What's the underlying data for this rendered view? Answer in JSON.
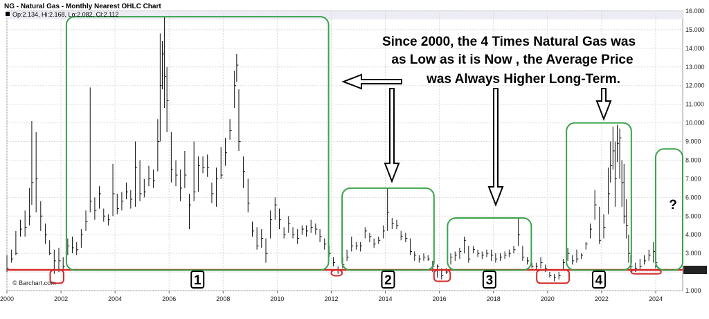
{
  "header": {
    "title": "NG - Natural Gas - Monthly Nearest OHLC Chart",
    "ohlc": "Op:2.134, Hi:2.168, Lo:2.082, Cl:2.112"
  },
  "credit": "© Barchart.com",
  "annotation": {
    "lines": [
      "Since 2000, the 4 Times Natural Gas was",
      "as Low as it is Now , the Average Price",
      "was Always Higher Long-Term."
    ]
  },
  "question_mark": "?",
  "current_price_label": "2.112",
  "periods": [
    {
      "label": "1",
      "x_start": 2002.2,
      "x_end": 2011.9,
      "y_low": 2.1,
      "y_high": 15.7
    },
    {
      "label": "2",
      "x_start": 2012.4,
      "x_end": 2015.8,
      "y_low": 2.1,
      "y_high": 6.5
    },
    {
      "label": "3",
      "x_start": 2016.3,
      "x_end": 2019.4,
      "y_low": 2.1,
      "y_high": 4.9
    },
    {
      "label": "4",
      "x_start": 2020.7,
      "x_end": 2023.1,
      "y_low": 2.1,
      "y_high": 10.0
    }
  ],
  "lows": [
    {
      "x_start": 2001.6,
      "x_end": 2002.1,
      "y_low": 1.4,
      "y_high": 2.1
    },
    {
      "x_start": 2012.0,
      "x_end": 2012.4,
      "y_low": 1.8,
      "y_high": 2.1
    },
    {
      "x_start": 2015.8,
      "x_end": 2016.4,
      "y_low": 1.5,
      "y_high": 2.1
    },
    {
      "x_start": 2019.6,
      "x_end": 2020.8,
      "y_low": 1.4,
      "y_high": 2.1
    },
    {
      "x_start": 2023.1,
      "x_end": 2024.2,
      "y_low": 1.9,
      "y_high": 2.1
    }
  ],
  "future_box": {
    "x_start": 2024.0,
    "x_end": 2025.0,
    "y_low": 2.1,
    "y_high": 8.6
  },
  "chart_data": {
    "type": "ohlc",
    "title": "NG - Natural Gas - Monthly Nearest OHLC Chart",
    "xlabel": "",
    "ylabel": "",
    "xlim": [
      2000,
      2025
    ],
    "ylim": [
      1.0,
      16.0
    ],
    "y_ticks": [
      "1.000",
      "2.000",
      "3.000",
      "4.000",
      "5.000",
      "6.000",
      "7.000",
      "8.000",
      "9.000",
      "10.000",
      "11.000",
      "12.000",
      "13.000",
      "14.000",
      "15.000",
      "16.000"
    ],
    "x_ticks": [
      "2000",
      "2002",
      "2004",
      "2006",
      "2008",
      "2010",
      "2012",
      "2014",
      "2016",
      "2018",
      "2020",
      "2022",
      "2024"
    ],
    "reference_line": 2.112,
    "grid": true,
    "bars": [
      [
        2000.0,
        2.2,
        2.0,
        2.9
      ],
      [
        2000.17,
        2.7,
        2.5,
        3.2
      ],
      [
        2000.33,
        3.0,
        2.9,
        4.2
      ],
      [
        2000.5,
        4.3,
        3.9,
        4.8
      ],
      [
        2000.67,
        4.4,
        3.9,
        5.3
      ],
      [
        2000.83,
        5.0,
        4.5,
        6.5
      ],
      [
        2000.92,
        6.8,
        5.6,
        10.1
      ],
      [
        2001.08,
        7.0,
        5.2,
        9.5
      ],
      [
        2001.25,
        5.0,
        4.2,
        5.8
      ],
      [
        2001.42,
        4.0,
        3.5,
        4.6
      ],
      [
        2001.58,
        3.0,
        2.9,
        3.7
      ],
      [
        2001.75,
        2.6,
        1.9,
        3.2
      ],
      [
        2001.92,
        2.6,
        2.0,
        3.3
      ],
      [
        2002.08,
        2.3,
        2.1,
        2.8
      ],
      [
        2002.25,
        3.4,
        2.9,
        3.8
      ],
      [
        2002.42,
        3.3,
        3.0,
        3.9
      ],
      [
        2002.58,
        3.2,
        2.9,
        3.6
      ],
      [
        2002.75,
        4.0,
        3.3,
        4.3
      ],
      [
        2002.92,
        4.7,
        4.2,
        5.3
      ],
      [
        2003.08,
        5.8,
        5.2,
        11.9
      ],
      [
        2003.25,
        5.3,
        4.8,
        6.0
      ],
      [
        2003.42,
        6.2,
        5.4,
        6.6
      ],
      [
        2003.58,
        5.0,
        4.7,
        5.4
      ],
      [
        2003.75,
        4.8,
        4.5,
        5.1
      ],
      [
        2003.92,
        6.2,
        5.0,
        7.8
      ],
      [
        2004.08,
        5.4,
        5.1,
        6.2
      ],
      [
        2004.25,
        5.8,
        5.3,
        6.3
      ],
      [
        2004.42,
        6.3,
        5.9,
        6.8
      ],
      [
        2004.58,
        5.9,
        5.4,
        6.4
      ],
      [
        2004.75,
        7.6,
        5.5,
        9.0
      ],
      [
        2004.92,
        6.2,
        5.8,
        8.0
      ],
      [
        2005.08,
        6.3,
        6.0,
        7.0
      ],
      [
        2005.25,
        7.0,
        6.6,
        7.7
      ],
      [
        2005.42,
        6.9,
        6.5,
        7.5
      ],
      [
        2005.58,
        9.0,
        7.4,
        10.2
      ],
      [
        2005.67,
        12.0,
        9.0,
        14.8
      ],
      [
        2005.75,
        13.7,
        11.8,
        14.4
      ],
      [
        2005.83,
        12.5,
        10.8,
        15.7
      ],
      [
        2005.92,
        11.2,
        9.5,
        13.0
      ],
      [
        2006.08,
        7.5,
        6.8,
        9.5
      ],
      [
        2006.25,
        7.2,
        6.6,
        8.0
      ],
      [
        2006.42,
        6.5,
        5.8,
        7.5
      ],
      [
        2006.58,
        7.2,
        6.5,
        8.5
      ],
      [
        2006.75,
        5.6,
        4.3,
        6.2
      ],
      [
        2006.92,
        6.3,
        5.8,
        9.0
      ],
      [
        2007.08,
        7.7,
        6.3,
        8.2
      ],
      [
        2007.25,
        7.6,
        7.3,
        8.2
      ],
      [
        2007.42,
        7.6,
        7.1,
        8.3
      ],
      [
        2007.58,
        6.2,
        5.7,
        6.8
      ],
      [
        2007.75,
        7.0,
        5.5,
        7.6
      ],
      [
        2007.92,
        7.2,
        7.0,
        8.7
      ],
      [
        2008.08,
        8.4,
        7.7,
        9.2
      ],
      [
        2008.25,
        9.6,
        9.1,
        10.2
      ],
      [
        2008.42,
        12.0,
        10.8,
        12.8
      ],
      [
        2008.5,
        13.1,
        12.2,
        13.7
      ],
      [
        2008.58,
        9.0,
        8.5,
        11.8
      ],
      [
        2008.75,
        7.4,
        6.5,
        8.2
      ],
      [
        2008.92,
        5.7,
        5.2,
        7.0
      ],
      [
        2009.08,
        4.2,
        3.9,
        4.7
      ],
      [
        2009.25,
        3.4,
        3.2,
        4.4
      ],
      [
        2009.42,
        3.8,
        3.3,
        4.3
      ],
      [
        2009.58,
        3.0,
        2.5,
        3.8
      ],
      [
        2009.75,
        4.8,
        3.8,
        5.3
      ],
      [
        2009.92,
        5.6,
        4.8,
        6.0
      ],
      [
        2010.08,
        4.8,
        4.3,
        5.4
      ],
      [
        2010.25,
        4.0,
        3.8,
        4.4
      ],
      [
        2010.42,
        4.6,
        4.1,
        5.0
      ],
      [
        2010.58,
        4.0,
        3.8,
        4.4
      ],
      [
        2010.75,
        3.8,
        3.5,
        4.3
      ],
      [
        2010.92,
        4.3,
        4.0,
        4.5
      ],
      [
        2011.08,
        4.2,
        3.9,
        4.5
      ],
      [
        2011.25,
        4.4,
        4.1,
        4.8
      ],
      [
        2011.42,
        4.3,
        4.0,
        4.6
      ],
      [
        2011.58,
        3.9,
        3.6,
        4.3
      ],
      [
        2011.75,
        3.5,
        3.2,
        3.8
      ],
      [
        2011.92,
        3.0,
        2.8,
        3.4
      ],
      [
        2012.08,
        2.5,
        2.3,
        2.8
      ],
      [
        2012.25,
        2.1,
        1.9,
        2.3
      ],
      [
        2012.42,
        2.4,
        2.2,
        2.8
      ],
      [
        2012.58,
        2.8,
        2.6,
        3.2
      ],
      [
        2012.75,
        3.4,
        3.1,
        3.9
      ],
      [
        2012.92,
        3.4,
        3.2,
        3.6
      ],
      [
        2013.08,
        3.4,
        3.1,
        3.6
      ],
      [
        2013.25,
        4.2,
        3.8,
        4.4
      ],
      [
        2013.42,
        3.9,
        3.6,
        4.1
      ],
      [
        2013.58,
        3.5,
        3.3,
        3.8
      ],
      [
        2013.75,
        3.7,
        3.5,
        3.9
      ],
      [
        2013.92,
        4.2,
        3.8,
        4.5
      ],
      [
        2014.08,
        5.2,
        4.2,
        6.5
      ],
      [
        2014.25,
        4.6,
        4.3,
        4.9
      ],
      [
        2014.42,
        4.5,
        4.3,
        4.8
      ],
      [
        2014.58,
        3.9,
        3.7,
        4.2
      ],
      [
        2014.75,
        3.8,
        3.6,
        4.1
      ],
      [
        2014.92,
        3.1,
        2.9,
        3.8
      ],
      [
        2015.08,
        2.9,
        2.6,
        3.1
      ],
      [
        2015.25,
        2.7,
        2.5,
        2.9
      ],
      [
        2015.42,
        2.8,
        2.6,
        3.0
      ],
      [
        2015.58,
        2.7,
        2.6,
        2.9
      ],
      [
        2015.75,
        2.3,
        2.0,
        2.6
      ],
      [
        2015.92,
        2.3,
        1.7,
        2.4
      ],
      [
        2016.08,
        1.8,
        1.6,
        2.2
      ],
      [
        2016.25,
        2.0,
        1.9,
        2.2
      ],
      [
        2016.42,
        2.8,
        2.4,
        3.0
      ],
      [
        2016.58,
        2.9,
        2.6,
        3.1
      ],
      [
        2016.75,
        3.1,
        2.7,
        3.3
      ],
      [
        2016.92,
        3.7,
        3.0,
        3.9
      ],
      [
        2017.08,
        2.7,
        2.5,
        3.4
      ],
      [
        2017.25,
        3.2,
        3.0,
        3.4
      ],
      [
        2017.42,
        3.0,
        2.8,
        3.2
      ],
      [
        2017.58,
        2.9,
        2.7,
        3.1
      ],
      [
        2017.75,
        3.0,
        2.8,
        3.2
      ],
      [
        2017.92,
        2.9,
        2.6,
        3.2
      ],
      [
        2018.08,
        2.7,
        2.5,
        3.0
      ],
      [
        2018.25,
        2.8,
        2.6,
        3.0
      ],
      [
        2018.42,
        2.9,
        2.7,
        3.1
      ],
      [
        2018.58,
        3.0,
        2.8,
        3.2
      ],
      [
        2018.75,
        3.2,
        3.0,
        3.4
      ],
      [
        2018.92,
        4.0,
        3.4,
        4.9
      ],
      [
        2019.08,
        2.8,
        2.6,
        3.4
      ],
      [
        2019.25,
        2.6,
        2.4,
        2.8
      ],
      [
        2019.42,
        2.3,
        2.2,
        2.5
      ],
      [
        2019.58,
        2.3,
        2.1,
        2.5
      ],
      [
        2019.75,
        2.5,
        2.2,
        2.8
      ],
      [
        2019.92,
        2.2,
        2.0,
        2.4
      ],
      [
        2020.08,
        1.8,
        1.7,
        2.0
      ],
      [
        2020.25,
        1.7,
        1.5,
        1.9
      ],
      [
        2020.42,
        1.8,
        1.6,
        2.0
      ],
      [
        2020.58,
        2.5,
        2.1,
        2.7
      ],
      [
        2020.75,
        3.0,
        2.6,
        3.3
      ],
      [
        2020.92,
        2.6,
        2.4,
        2.9
      ],
      [
        2021.08,
        2.7,
        2.5,
        3.2
      ],
      [
        2021.25,
        2.9,
        2.7,
        3.0
      ],
      [
        2021.42,
        3.5,
        3.2,
        3.6
      ],
      [
        2021.58,
        4.3,
        3.8,
        4.6
      ],
      [
        2021.75,
        5.6,
        4.8,
        6.4
      ],
      [
        2021.92,
        3.7,
        3.5,
        5.5
      ],
      [
        2022.08,
        4.4,
        3.8,
        5.1
      ],
      [
        2022.25,
        6.2,
        5.1,
        7.6
      ],
      [
        2022.33,
        7.7,
        6.8,
        9.0
      ],
      [
        2022.42,
        8.5,
        7.5,
        9.8
      ],
      [
        2022.5,
        7.0,
        5.5,
        9.0
      ],
      [
        2022.58,
        8.9,
        7.9,
        9.9
      ],
      [
        2022.67,
        9.2,
        7.0,
        9.7
      ],
      [
        2022.75,
        6.8,
        5.5,
        8.0
      ],
      [
        2022.83,
        5.0,
        4.6,
        7.8
      ],
      [
        2022.92,
        4.5,
        3.8,
        5.9
      ],
      [
        2023.0,
        3.0,
        2.5,
        4.0
      ],
      [
        2023.08,
        2.3,
        2.0,
        2.9
      ],
      [
        2023.25,
        2.2,
        2.0,
        2.5
      ],
      [
        2023.42,
        2.3,
        2.1,
        2.7
      ],
      [
        2023.58,
        2.6,
        2.4,
        2.9
      ],
      [
        2023.75,
        2.9,
        2.6,
        3.2
      ],
      [
        2023.92,
        3.1,
        2.5,
        3.6
      ],
      [
        2024.0,
        2.5,
        2.2,
        2.8
      ],
      [
        2024.08,
        2.1,
        2.08,
        2.17
      ]
    ]
  }
}
